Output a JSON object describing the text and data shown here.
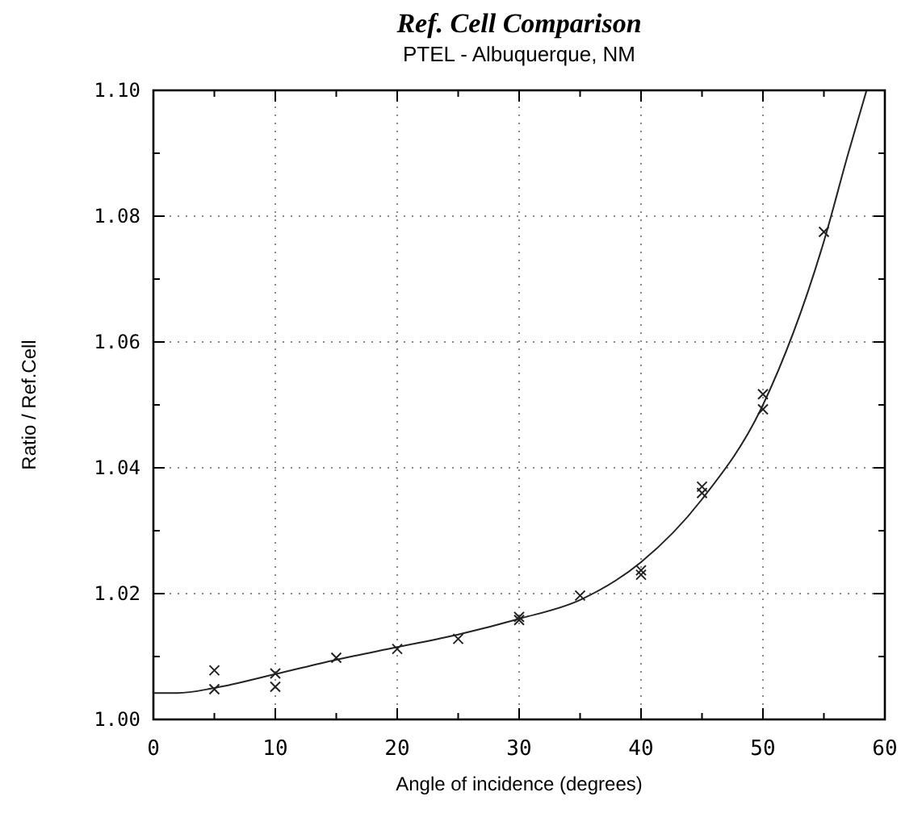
{
  "chart_data": {
    "type": "scatter",
    "title": "Ref. Cell Comparison",
    "subtitle": "PTEL - Albuquerque,  NM",
    "xlabel": "Angle of incidence (degrees)",
    "ylabel": "Ratio / Ref.Cell",
    "xlim": [
      0,
      60
    ],
    "ylim": [
      1.0,
      1.1
    ],
    "xticks": [
      0,
      {
        "value": 5,
        "label": null
      },
      10,
      {
        "value": 15,
        "label": null
      },
      20,
      {
        "value": 25,
        "label": null
      },
      30,
      {
        "value": 35,
        "label": null
      },
      40,
      {
        "value": 45,
        "label": null
      },
      50,
      {
        "value": 55,
        "label": null
      },
      60
    ],
    "yticks": [
      {
        "value": 1.0,
        "label": "1.00"
      },
      {
        "value": 1.01,
        "label": null
      },
      {
        "value": 1.02,
        "label": "1.02"
      },
      {
        "value": 1.03,
        "label": null
      },
      {
        "value": 1.04,
        "label": "1.04"
      },
      {
        "value": 1.05,
        "label": null
      },
      {
        "value": 1.06,
        "label": "1.06"
      },
      {
        "value": 1.07,
        "label": null
      },
      {
        "value": 1.08,
        "label": "1.08"
      },
      {
        "value": 1.09,
        "label": null
      },
      {
        "value": 1.1,
        "label": "1.10"
      }
    ],
    "grid": true,
    "series": [
      {
        "marker": "cross",
        "color": "#222222",
        "x": [
          5,
          5,
          10,
          10,
          15,
          20,
          25,
          30,
          30,
          35,
          40,
          40,
          45,
          45,
          50,
          50,
          55
        ],
        "values": [
          1.0078,
          1.0048,
          1.0073,
          1.0052,
          1.0098,
          1.0112,
          1.0128,
          1.0163,
          1.0158,
          1.0197,
          1.0237,
          1.023,
          1.037,
          1.036,
          1.0517,
          1.0493,
          1.0775
        ]
      },
      {
        "type": "line",
        "line_style": "solid",
        "color": "#222222",
        "x": [
          0,
          2,
          5,
          10,
          15,
          20,
          25,
          30,
          35,
          40,
          45,
          50,
          55,
          57,
          58.5
        ],
        "values": [
          1.0042,
          1.0042,
          1.005,
          1.0072,
          1.0095,
          1.0115,
          1.0135,
          1.016,
          1.019,
          1.025,
          1.035,
          1.05,
          1.076,
          1.09,
          1.1
        ]
      }
    ]
  }
}
